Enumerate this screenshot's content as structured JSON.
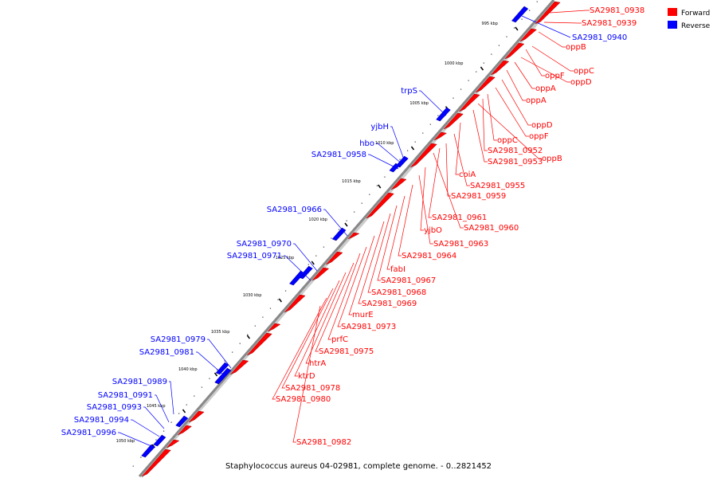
{
  "caption": "Staphylococcus aureus 04-02981, complete genome. - 0..2821452",
  "legend": [
    {
      "label": "Forward",
      "color": "#ff0000"
    },
    {
      "label": "Reverse",
      "color": "#0000ff"
    }
  ],
  "colors": {
    "forward": "#ff0000",
    "reverse": "#0000ff",
    "axis": "#888888"
  },
  "ticks": [
    "995 kbp",
    "1000 kbp",
    "1005 kbp",
    "1010 kbp",
    "1015 kbp",
    "1020 kbp",
    "1025 kbp",
    "1030 kbp",
    "1035 kbp",
    "1040 kbp",
    "1045 kbp",
    "1050 kbp"
  ],
  "forward_labels": [
    "SA2981_0938",
    "SA2981_0939",
    "oppB",
    "oppC",
    "oppF",
    "oppD",
    "oppA",
    "oppA",
    "oppD",
    "oppF",
    "oppC",
    "SA2981_0952",
    "oppB",
    "SA2981_0953",
    "coiA",
    "SA2981_0955",
    "SA2981_0959",
    "SA2981_0961",
    "SA2981_0960",
    "yjbO",
    "SA2981_0963",
    "SA2981_0964",
    "fabI",
    "SA2981_0967",
    "SA2981_0968",
    "SA2981_0969",
    "murE",
    "SA2981_0973",
    "prfC",
    "SA2981_0975",
    "htrA",
    "ktrD",
    "SA2981_0978",
    "SA2981_0980",
    "SA2981_0982"
  ],
  "reverse_labels": [
    "SA2981_0940",
    "trpS",
    "yjbH",
    "hbo",
    "SA2981_0958",
    "SA2981_0966",
    "SA2981_0970",
    "SA2981_0971",
    "SA2981_0979",
    "SA2981_0981",
    "SA2981_0989",
    "SA2981_0991",
    "SA2981_0993",
    "SA2981_0994",
    "SA2981_0996"
  ]
}
